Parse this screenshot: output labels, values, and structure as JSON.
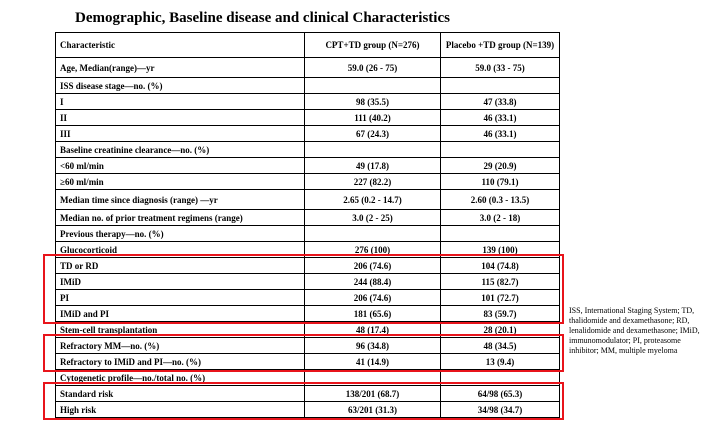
{
  "title": "Demographic, Baseline disease and clinical Characteristics",
  "table": {
    "header": [
      "Characteristic",
      "CPT+TD group (N=276)",
      "Placebo +TD group (N=139)"
    ],
    "rows": [
      [
        "Age, Median(range)—yr",
        "59.0 (26 - 75)",
        "59.0 (33 - 75)"
      ],
      [
        "ISS disease stage—no. (%)"
      ],
      [
        "I",
        "98 (35.5)",
        "47 (33.8)"
      ],
      [
        "II",
        "111 (40.2)",
        "46 (33.1)"
      ],
      [
        "III",
        "67 (24.3)",
        "46 (33.1)"
      ],
      [
        "Baseline creatinine clearance—no. (%)"
      ],
      [
        "<60 ml/min",
        "49 (17.8)",
        "29 (20.9)"
      ],
      [
        "≥60 ml/min",
        "227 (82.2)",
        "110 (79.1)"
      ],
      [
        "Median time since diagnosis (range) —yr",
        "2.65 (0.2 - 14.7)",
        "2.60 (0.3 - 13.5)"
      ],
      [
        "Median no. of prior treatment regimens (range)",
        "3.0 (2 - 25)",
        "3.0 (2 - 18)"
      ],
      [
        "Previous therapy—no. (%)"
      ],
      [
        "Glucocorticoid",
        "276 (100)",
        "139 (100)"
      ],
      [
        "TD or RD",
        "206 (74.6)",
        "104 (74.8)"
      ],
      [
        "IMiD",
        "244 (88.4)",
        "115 (82.7)"
      ],
      [
        "PI",
        "206 (74.6)",
        "101 (72.7)"
      ],
      [
        "IMiD and PI",
        "181 (65.6)",
        "83 (59.7)"
      ],
      [
        "Stem-cell transplantation",
        "48 (17.4)",
        "28 (20.1)"
      ],
      [
        "Refractory MM—no. (%)",
        "96 (34.8)",
        "48 (34.5)"
      ],
      [
        "Refractory to IMiD and PI—no. (%)",
        "41 (14.9)",
        "13 (9.4)"
      ],
      [
        "Cytogenetic profile—no./total no. (%)"
      ],
      [
        "Standard risk",
        "138/201 (68.7)",
        "64/98 (65.3)"
      ],
      [
        "High risk",
        "63/201 (31.3)",
        "34/98 (34.7)"
      ]
    ]
  },
  "footnote": "ISS, International Staging System; TD, thalidomide and dexamethasone; RD, lenalidomide and dexamethasone; IMiD, immunomodulator; PI, proteasome inhibitor; MM, multiple myeloma"
}
